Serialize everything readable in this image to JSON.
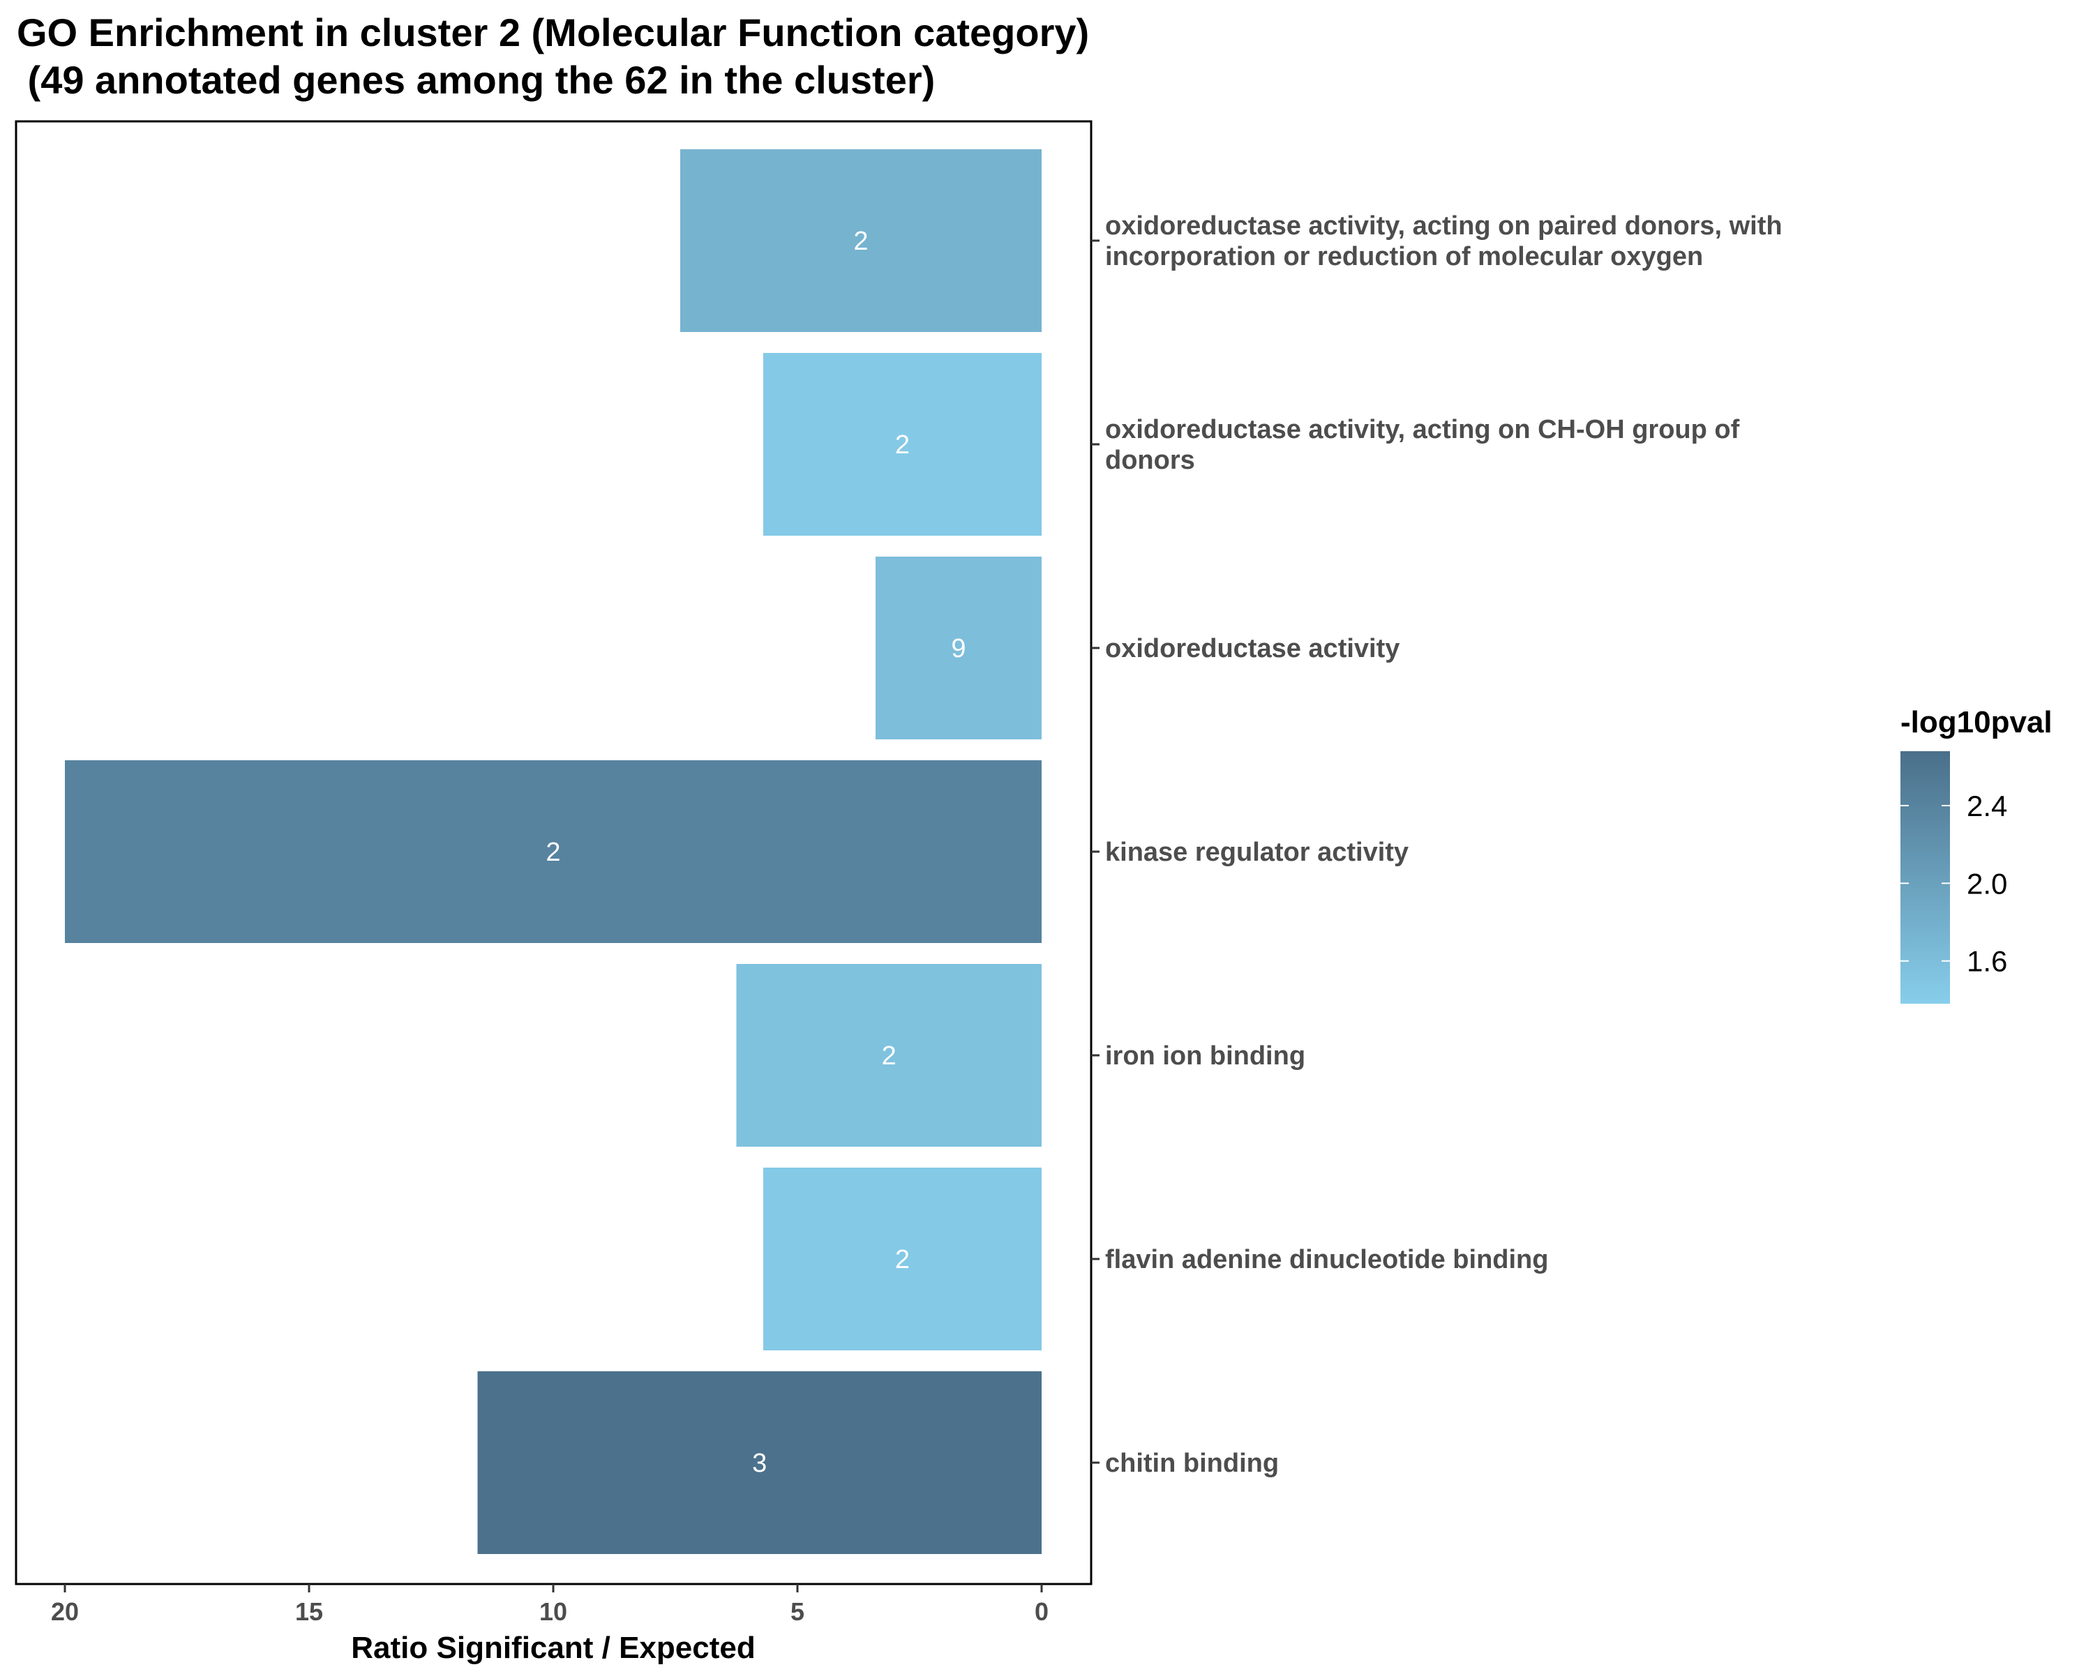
{
  "chart_data": {
    "type": "bar",
    "orientation": "horizontal",
    "title_line1": "GO Enrichment in cluster 2 (Molecular Function category)",
    "title_line2": " (49 annotated genes among the 62 in the cluster)",
    "xlabel": "Ratio Significant / Expected",
    "ylabel": "",
    "x_reversed": true,
    "xlim": [
      0,
      21
    ],
    "x_ticks": [
      20,
      15,
      10,
      5,
      0
    ],
    "x_tick_labels": [
      "20",
      "15",
      "10",
      "5",
      "0"
    ],
    "categories": [
      {
        "label_lines": [
          "oxidoreductase activity, acting on paired donors, with",
          "incorporation or reduction of molecular oxygen"
        ],
        "value": 7.4,
        "bar_label": "2",
        "neg_log10_pval": 1.75
      },
      {
        "label_lines": [
          "oxidoreductase activity, acting on CH-OH group of",
          "donors"
        ],
        "value": 5.7,
        "bar_label": "2",
        "neg_log10_pval": 1.45
      },
      {
        "label_lines": [
          "oxidoreductase activity"
        ],
        "value": 3.4,
        "bar_label": "9",
        "neg_log10_pval": 1.6
      },
      {
        "label_lines": [
          "kinase regulator activity"
        ],
        "value": 20.0,
        "bar_label": "2",
        "neg_log10_pval": 2.4
      },
      {
        "label_lines": [
          "iron ion binding"
        ],
        "value": 6.25,
        "bar_label": "2",
        "neg_log10_pval": 1.55
      },
      {
        "label_lines": [
          "flavin adenine dinucleotide binding"
        ],
        "value": 5.7,
        "bar_label": "2",
        "neg_log10_pval": 1.45
      },
      {
        "label_lines": [
          "chitin binding"
        ],
        "value": 11.55,
        "bar_label": "3",
        "neg_log10_pval": 2.65
      }
    ],
    "legend": {
      "title": "-log10pval",
      "placement": "right",
      "range": [
        1.38,
        2.68
      ],
      "ticks": [
        2.4,
        2.0,
        1.6
      ],
      "tick_labels": [
        "2.4",
        "2.0",
        "1.6"
      ],
      "low_color": "#87ceeb",
      "high_color": "#4a6f8a"
    },
    "grid": false
  }
}
